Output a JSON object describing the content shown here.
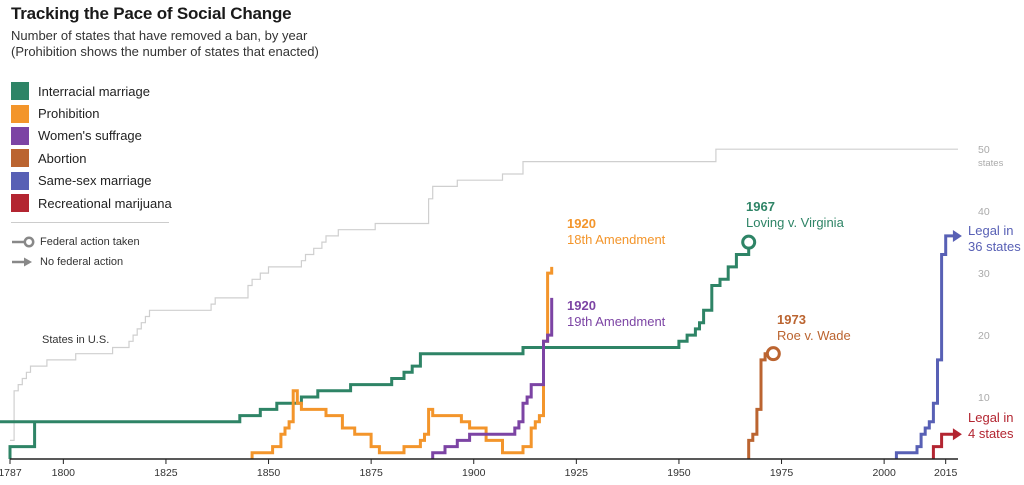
{
  "title": "Tracking the Pace of Social Change",
  "subtitle_line1": "Number of states that have removed a ban, by year",
  "subtitle_line2": "(Prohibition shows the number of states that enacted)",
  "legend": [
    {
      "label": "Interracial marriage",
      "color": "#2e8466"
    },
    {
      "label": "Prohibition",
      "color": "#f3952b"
    },
    {
      "label": "Women's suffrage",
      "color": "#7c44a4"
    },
    {
      "label": "Abortion",
      "color": "#bb6430"
    },
    {
      "label": "Same-sex marriage",
      "color": "#5860b5"
    },
    {
      "label": "Recreational marijuana",
      "color": "#b32531"
    }
  ],
  "symbols": {
    "federal": "Federal action taken",
    "no_federal": "No federal action"
  },
  "chart_data": {
    "type": "line",
    "x_ticks": [
      1787,
      1800,
      1825,
      1850,
      1875,
      1900,
      1925,
      1950,
      1975,
      2000,
      2015
    ],
    "y_ticks": [
      10,
      20,
      30,
      40,
      50
    ],
    "y_top_label_line2": "states",
    "xlim": [
      1787,
      2018
    ],
    "ylim": [
      0,
      51
    ],
    "grid": false,
    "states_label": "States in U.S.",
    "states_in_us": [
      [
        1787,
        3
      ],
      [
        1788,
        11
      ],
      [
        1789,
        12
      ],
      [
        1790,
        13
      ],
      [
        1791,
        14
      ],
      [
        1792,
        15
      ],
      [
        1796,
        16
      ],
      [
        1803,
        17
      ],
      [
        1812,
        18
      ],
      [
        1816,
        19
      ],
      [
        1817,
        20
      ],
      [
        1818,
        21
      ],
      [
        1819,
        22
      ],
      [
        1820,
        23
      ],
      [
        1821,
        24
      ],
      [
        1836,
        25
      ],
      [
        1837,
        26
      ],
      [
        1845,
        28
      ],
      [
        1846,
        29
      ],
      [
        1848,
        30
      ],
      [
        1850,
        31
      ],
      [
        1858,
        32
      ],
      [
        1859,
        33
      ],
      [
        1861,
        34
      ],
      [
        1863,
        35
      ],
      [
        1864,
        36
      ],
      [
        1867,
        37
      ],
      [
        1876,
        38
      ],
      [
        1889,
        42
      ],
      [
        1890,
        44
      ],
      [
        1896,
        45
      ],
      [
        1907,
        46
      ],
      [
        1912,
        48
      ],
      [
        1959,
        50
      ],
      [
        2018,
        50
      ]
    ],
    "series": [
      {
        "name": "Interracial marriage",
        "color": "#2e8466",
        "end": "circle",
        "points": [
          [
            1787,
            0
          ],
          [
            1787,
            2
          ],
          [
            1789,
            5
          ],
          [
            1780,
            6
          ],
          [
            1843,
            6
          ],
          [
            1843,
            7
          ],
          [
            1848,
            8
          ],
          [
            1852,
            9
          ],
          [
            1858,
            9
          ],
          [
            1858,
            10
          ],
          [
            1862,
            11
          ],
          [
            1862,
            11
          ],
          [
            1870,
            12
          ],
          [
            1870,
            12
          ],
          [
            1880,
            13
          ],
          [
            1880,
            13
          ],
          [
            1883,
            14
          ],
          [
            1883,
            14
          ],
          [
            1885,
            15
          ],
          [
            1885,
            15
          ],
          [
            1887,
            17
          ],
          [
            1887,
            17
          ],
          [
            1912,
            17
          ],
          [
            1912,
            18
          ],
          [
            1915,
            18
          ],
          [
            1945,
            18
          ],
          [
            1950,
            19
          ],
          [
            1952,
            20
          ],
          [
            1954,
            21
          ],
          [
            1955,
            22
          ],
          [
            1956,
            24
          ],
          [
            1958,
            28
          ],
          [
            1960,
            29
          ],
          [
            1962,
            31
          ],
          [
            1964,
            33
          ],
          [
            1967,
            35
          ]
        ]
      },
      {
        "name": "Prohibition",
        "color": "#f3952b",
        "end": "none",
        "points": [
          [
            1846,
            0
          ],
          [
            1846,
            1
          ],
          [
            1851,
            1
          ],
          [
            1851,
            2
          ],
          [
            1852,
            2
          ],
          [
            1853,
            4
          ],
          [
            1854,
            5
          ],
          [
            1855,
            6
          ],
          [
            1856,
            11
          ],
          [
            1857,
            9
          ],
          [
            1858,
            8
          ],
          [
            1862,
            8
          ],
          [
            1864,
            7
          ],
          [
            1868,
            5
          ],
          [
            1871,
            4
          ],
          [
            1874,
            4
          ],
          [
            1875,
            2
          ],
          [
            1877,
            1
          ],
          [
            1880,
            1
          ],
          [
            1883,
            2
          ],
          [
            1886,
            2
          ],
          [
            1887,
            3
          ],
          [
            1888,
            4
          ],
          [
            1889,
            8
          ],
          [
            1890,
            7
          ],
          [
            1895,
            7
          ],
          [
            1897,
            6
          ],
          [
            1899,
            5
          ],
          [
            1903,
            3
          ],
          [
            1906,
            3
          ],
          [
            1907,
            1
          ],
          [
            1911,
            1
          ],
          [
            1912,
            2
          ],
          [
            1914,
            5
          ],
          [
            1915,
            6
          ],
          [
            1916,
            7
          ],
          [
            1917,
            19
          ],
          [
            1918,
            21
          ],
          [
            1918,
            30
          ],
          [
            1919,
            31
          ]
        ]
      },
      {
        "name": "Women's suffrage",
        "color": "#7c44a4",
        "end": "none",
        "points": [
          [
            1890,
            0
          ],
          [
            1890,
            1
          ],
          [
            1893,
            1
          ],
          [
            1893,
            2
          ],
          [
            1896,
            2
          ],
          [
            1896,
            3
          ],
          [
            1899,
            3
          ],
          [
            1899,
            4
          ],
          [
            1910,
            4
          ],
          [
            1910,
            5
          ],
          [
            1911,
            6
          ],
          [
            1912,
            9
          ],
          [
            1913,
            10
          ],
          [
            1914,
            12
          ],
          [
            1917,
            12
          ],
          [
            1917,
            19
          ],
          [
            1918,
            20
          ],
          [
            1919,
            26
          ]
        ]
      },
      {
        "name": "Abortion",
        "color": "#bb6430",
        "end": "circle",
        "points": [
          [
            1967,
            0
          ],
          [
            1967,
            3
          ],
          [
            1968,
            4
          ],
          [
            1969,
            8
          ],
          [
            1970,
            16
          ],
          [
            1971,
            17
          ],
          [
            1972,
            17
          ],
          [
            1973,
            17
          ]
        ]
      },
      {
        "name": "Same-sex marriage",
        "color": "#5860b5",
        "end": "arrow",
        "points": [
          [
            2003,
            0
          ],
          [
            2003,
            1
          ],
          [
            2008,
            1
          ],
          [
            2008,
            2
          ],
          [
            2009,
            4
          ],
          [
            2010,
            5
          ],
          [
            2011,
            6
          ],
          [
            2012,
            9
          ],
          [
            2013,
            16
          ],
          [
            2014,
            33
          ],
          [
            2015,
            36
          ],
          [
            2017,
            36
          ]
        ]
      },
      {
        "name": "Recreational marijuana",
        "color": "#b32531",
        "end": "arrow",
        "points": [
          [
            2012,
            0
          ],
          [
            2012,
            2
          ],
          [
            2014,
            2
          ],
          [
            2014,
            4
          ],
          [
            2017,
            4
          ]
        ]
      }
    ],
    "annotations": [
      {
        "year_text": "1920",
        "desc": "18th Amendment",
        "color": "#f3952b"
      },
      {
        "year_text": "1920",
        "desc": "19th Amendment",
        "color": "#7c44a4"
      },
      {
        "year_text": "1967",
        "desc": "Loving v. Virginia",
        "color": "#2e8466"
      },
      {
        "year_text": "1973",
        "desc": "Roe v. Wade",
        "color": "#bb6430"
      },
      {
        "line1": "Legal in",
        "line2": "36 states",
        "color": "#5860b5"
      },
      {
        "line1": "Legal in",
        "line2": "4 states",
        "color": "#b32531"
      }
    ]
  }
}
